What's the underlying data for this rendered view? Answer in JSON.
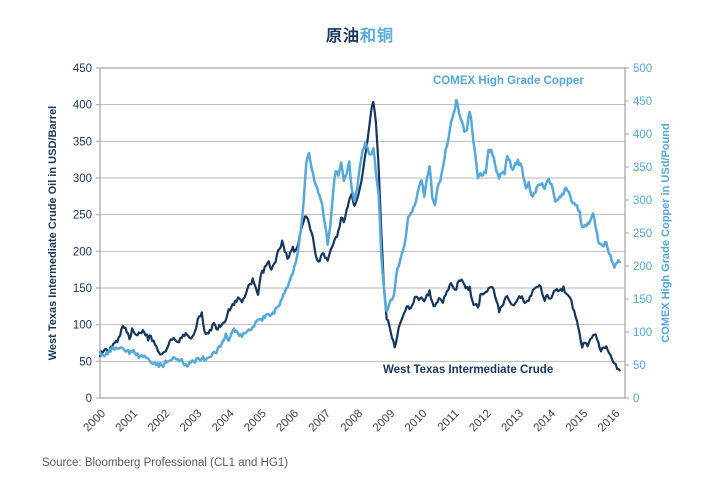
{
  "title": {
    "part1": "原油",
    "part2": "和铜"
  },
  "source": "Source: Bloomberg Professional (CL1 and HG1)",
  "labels": {
    "copper_inline": "COMEX High Grade Copper",
    "oil_inline": "West Texas Intermediate Crude"
  },
  "colors": {
    "oil": "#17365d",
    "copper": "#56a8da",
    "copper_text": "#54a7d9",
    "grid": "#b9b9b9",
    "plot_border": "#a3a3a3",
    "x_tick_text": "#404040",
    "source_text": "#595959",
    "background": "#ffffff"
  },
  "chart_data": {
    "type": "line",
    "title": "原油和铜",
    "grid": "horizontal",
    "legend_position": "inline-labels",
    "x_tick_labels": [
      "2000",
      "2001",
      "2002",
      "2003",
      "2004",
      "2005",
      "2006",
      "2007",
      "2008",
      "2009",
      "2010",
      "2011",
      "2012",
      "2013",
      "2014",
      "2015",
      "2016"
    ],
    "x_start_year": 2000,
    "points_per_year": 12,
    "left_axis": {
      "label": "West Texas Intermediate Crude Oil in USD/Barrel",
      "min": 0,
      "max": 450,
      "step": 50,
      "tick_labels": [
        "0",
        "50",
        "100",
        "150",
        "200",
        "250",
        "300",
        "350",
        "400",
        "450"
      ]
    },
    "right_axis": {
      "label": "COMEX High Grade Copper in USd/Pound",
      "min": 0,
      "max": 500,
      "step": 50,
      "tick_labels": [
        "0",
        "50",
        "100",
        "150",
        "200",
        "250",
        "300",
        "350",
        "400",
        "450",
        "500"
      ]
    },
    "series": [
      {
        "name": "West Texas Intermediate Crude",
        "axis": "left",
        "color": "#17365d",
        "values": [
          58,
          63,
          68,
          65,
          71,
          75,
          77,
          82,
          93,
          97,
          90,
          80,
          94,
          88,
          84,
          88,
          91,
          86,
          80,
          84,
          77,
          70,
          62,
          60,
          62,
          66,
          76,
          81,
          78,
          76,
          82,
          85,
          89,
          86,
          80,
          88,
          98,
          110,
          116,
          92,
          88,
          94,
          98,
          100,
          94,
          98,
          102,
          108,
          120,
          124,
          128,
          132,
          136,
          130,
          138,
          148,
          154,
          162,
          152,
          140,
          168,
          172,
          180,
          186,
          176,
          184,
          194,
          204,
          214,
          198,
          190,
          198,
          205,
          200,
          210,
          228,
          240,
          248,
          238,
          225,
          205,
          188,
          186,
          196,
          192,
          188,
          200,
          210,
          218,
          228,
          246,
          238,
          256,
          270,
          278,
          262,
          272,
          288,
          306,
          330,
          356,
          386,
          405,
          376,
          318,
          228,
          148,
          108,
          98,
          82,
          70,
          86,
          100,
          112,
          118,
          126,
          122,
          130,
          138,
          134,
          138,
          132,
          140,
          146,
          130,
          126,
          132,
          134,
          130,
          140,
          146,
          156,
          150,
          148,
          160,
          162,
          156,
          150,
          152,
          132,
          128,
          122,
          140,
          142,
          144,
          150,
          152,
          146,
          132,
          118,
          126,
          134,
          138,
          130,
          126,
          128,
          136,
          138,
          134,
          132,
          134,
          138,
          148,
          152,
          154,
          144,
          134,
          140,
          136,
          142,
          146,
          144,
          147,
          152,
          142,
          138,
          132,
          118,
          106,
          88,
          70,
          76,
          72,
          82,
          86,
          88,
          78,
          64,
          68,
          70,
          62,
          54,
          46,
          40,
          36
        ]
      },
      {
        "name": "COMEX High Grade Copper",
        "axis": "right",
        "color": "#56a8da",
        "values": [
          68,
          66,
          65,
          68,
          72,
          76,
          78,
          76,
          75,
          72,
          70,
          68,
          70,
          68,
          66,
          64,
          62,
          60,
          58,
          55,
          52,
          50,
          48,
          50,
          52,
          54,
          56,
          58,
          60,
          60,
          58,
          54,
          52,
          50,
          54,
          56,
          58,
          60,
          60,
          58,
          62,
          64,
          66,
          70,
          74,
          78,
          88,
          98,
          88,
          96,
          104,
          100,
          94,
          92,
          98,
          100,
          104,
          108,
          114,
          118,
          118,
          122,
          126,
          128,
          126,
          130,
          136,
          142,
          150,
          158,
          168,
          180,
          190,
          205,
          225,
          255,
          295,
          355,
          372,
          345,
          330,
          320,
          305,
          290,
          262,
          232,
          262,
          310,
          345,
          338,
          355,
          330,
          340,
          358,
          318,
          298,
          318,
          352,
          375,
          388,
          378,
          368,
          378,
          342,
          310,
          215,
          165,
          130,
          142,
          148,
          165,
          195,
          208,
          222,
          238,
          275,
          280,
          288,
          298,
          318,
          330,
          305,
          335,
          352,
          305,
          292,
          318,
          328,
          348,
          375,
          390,
          418,
          432,
          450,
          432,
          420,
          405,
          408,
          435,
          405,
          370,
          335,
          340,
          338,
          342,
          376,
          375,
          365,
          342,
          332,
          342,
          338,
          366,
          360,
          346,
          356,
          360,
          354,
          336,
          318,
          326,
          306,
          310,
          320,
          322,
          326,
          316,
          330,
          326,
          316,
          296,
          300,
          306,
          310,
          318,
          312,
          300,
          296,
          292,
          284,
          258,
          262,
          266,
          270,
          280,
          260,
          238,
          232,
          230,
          236,
          218,
          208,
          196,
          204,
          208
        ]
      }
    ]
  }
}
